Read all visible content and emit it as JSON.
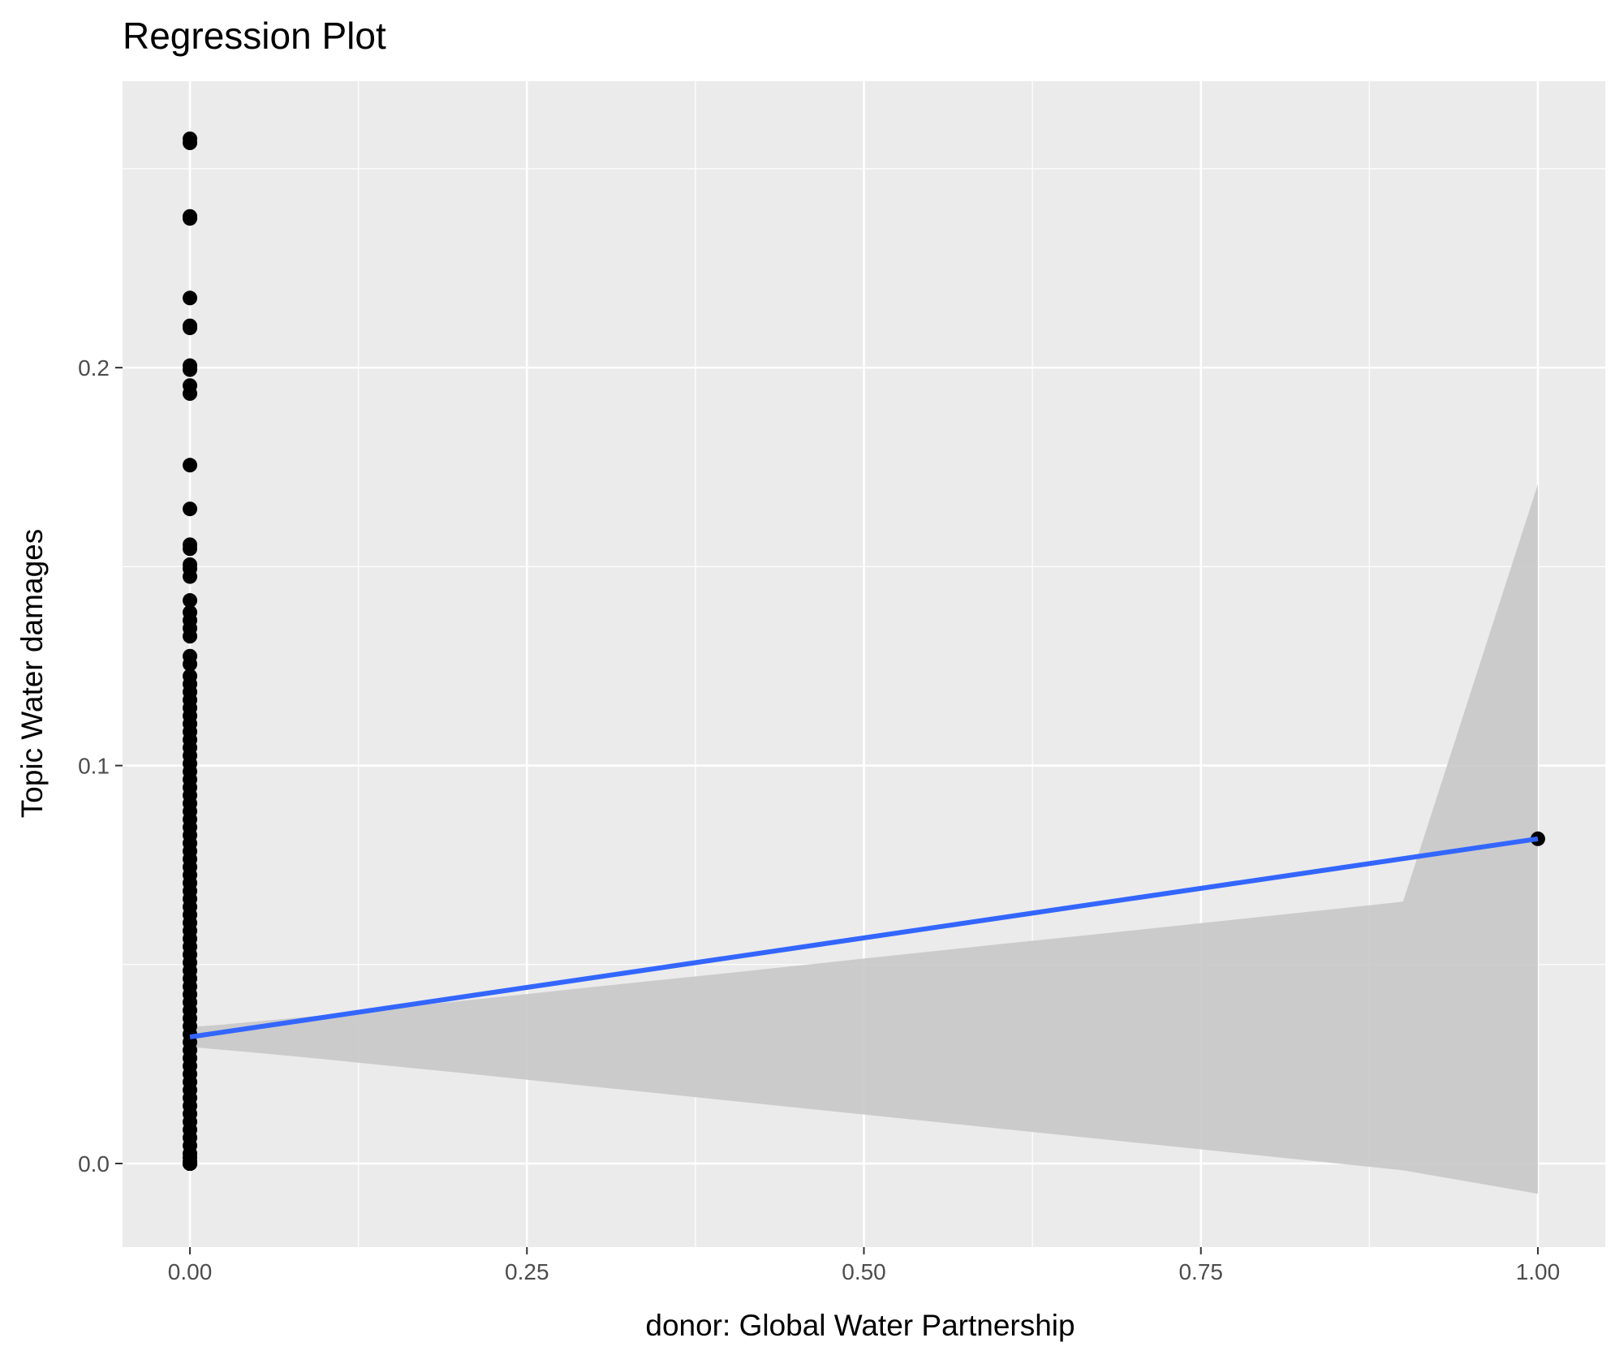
{
  "chart_data": {
    "type": "scatter",
    "title": "Regression Plot",
    "xlabel": "donor: Global Water Partnership",
    "ylabel": "Topic Water damages",
    "xlim": [
      -0.05,
      1.05
    ],
    "ylim": [
      -0.021,
      0.272
    ],
    "x_ticks": [
      0.0,
      0.25,
      0.5,
      0.75,
      1.0
    ],
    "x_tick_labels": [
      "0.00",
      "0.25",
      "0.50",
      "0.75",
      "1.00"
    ],
    "y_ticks": [
      0.0,
      0.1,
      0.2
    ],
    "y_tick_labels": [
      "0.0",
      "0.1",
      "0.2"
    ],
    "grid": true,
    "colors": {
      "panel_background": "#ebebeb",
      "grid": "#ffffff",
      "points": "#000000",
      "regression_line": "#3366ff",
      "confidence_band": "#c8c8c8"
    },
    "points": {
      "x": [
        0,
        0,
        0,
        0,
        0,
        0,
        0,
        0,
        0,
        0,
        0,
        0,
        0,
        0,
        0,
        0,
        0,
        0,
        0,
        0,
        0,
        0,
        0,
        0,
        0,
        0,
        0,
        0,
        0,
        0,
        0,
        0,
        0,
        0,
        0,
        0,
        0,
        0,
        0,
        0,
        0,
        0,
        0,
        0,
        0,
        0,
        0,
        0,
        0,
        0,
        0,
        0,
        0,
        0,
        0,
        0,
        0,
        0,
        0,
        0,
        0,
        0,
        0,
        0,
        0,
        0,
        0,
        0,
        0,
        0,
        0,
        0,
        0,
        0,
        0,
        0,
        0,
        0,
        0,
        0,
        0,
        0,
        0,
        0,
        0,
        0,
        0,
        0,
        0,
        0,
        0,
        0,
        0,
        0,
        0,
        0,
        0,
        0,
        0,
        0,
        0,
        0,
        0,
        0,
        0,
        0,
        0,
        0,
        0,
        0,
        1
      ],
      "y": [
        0.2575,
        0.2565,
        0.238,
        0.2375,
        0.2175,
        0.2105,
        0.21,
        0.2005,
        0.1995,
        0.1955,
        0.1935,
        0.1755,
        0.1645,
        0.1555,
        0.1545,
        0.1505,
        0.1495,
        0.1475,
        0.1415,
        0.1385,
        0.1365,
        0.1345,
        0.1325,
        0.1275,
        0.1255,
        0.1225,
        0.1205,
        0.1185,
        0.1165,
        0.1145,
        0.1125,
        0.1105,
        0.1085,
        0.1065,
        0.1045,
        0.1025,
        0.1005,
        0.0985,
        0.0965,
        0.0945,
        0.0925,
        0.0905,
        0.0885,
        0.0865,
        0.0845,
        0.0825,
        0.0805,
        0.0785,
        0.0765,
        0.0745,
        0.0725,
        0.0705,
        0.0685,
        0.0665,
        0.0645,
        0.0625,
        0.0605,
        0.0585,
        0.0565,
        0.0545,
        0.0525,
        0.0505,
        0.0485,
        0.0465,
        0.0445,
        0.0425,
        0.0405,
        0.0385,
        0.0365,
        0.0345,
        0.0325,
        0.0305,
        0.0285,
        0.0265,
        0.0245,
        0.0225,
        0.0205,
        0.0185,
        0.0165,
        0.0145,
        0.0125,
        0.0105,
        0.0085,
        0.0065,
        0.0045,
        0.0025,
        0.0015,
        0.0005,
        0.0,
        0.0,
        0.0,
        0.0,
        0.0,
        0.0,
        0.0,
        0.0,
        0.0,
        0.0,
        0.0,
        0.0,
        0.0,
        0.0,
        0.0,
        0.0,
        0.0,
        0.0,
        0.0,
        0.0,
        0.0,
        0.0,
        0.0816
      ]
    },
    "regression": {
      "x": [
        0,
        1
      ],
      "y": [
        0.0318,
        0.0816
      ]
    },
    "confidence_band": {
      "x": [
        0,
        0.02,
        0.05,
        0.1,
        0.2,
        0.3,
        0.4,
        0.5,
        0.6,
        0.7,
        0.8,
        0.9,
        1.0
      ],
      "lower": [
        0.0293,
        0.0287,
        0.0278,
        0.0262,
        0.0228,
        0.0193,
        0.0158,
        0.0123,
        0.0088,
        0.0053,
        0.0018,
        -0.0017,
        -0.0076
      ],
      "upper": [
        0.0343,
        0.0348,
        0.0357,
        0.0373,
        0.0408,
        0.0444,
        0.0479,
        0.0515,
        0.0551,
        0.0586,
        0.0622,
        0.0658,
        0.1707
      ]
    }
  }
}
